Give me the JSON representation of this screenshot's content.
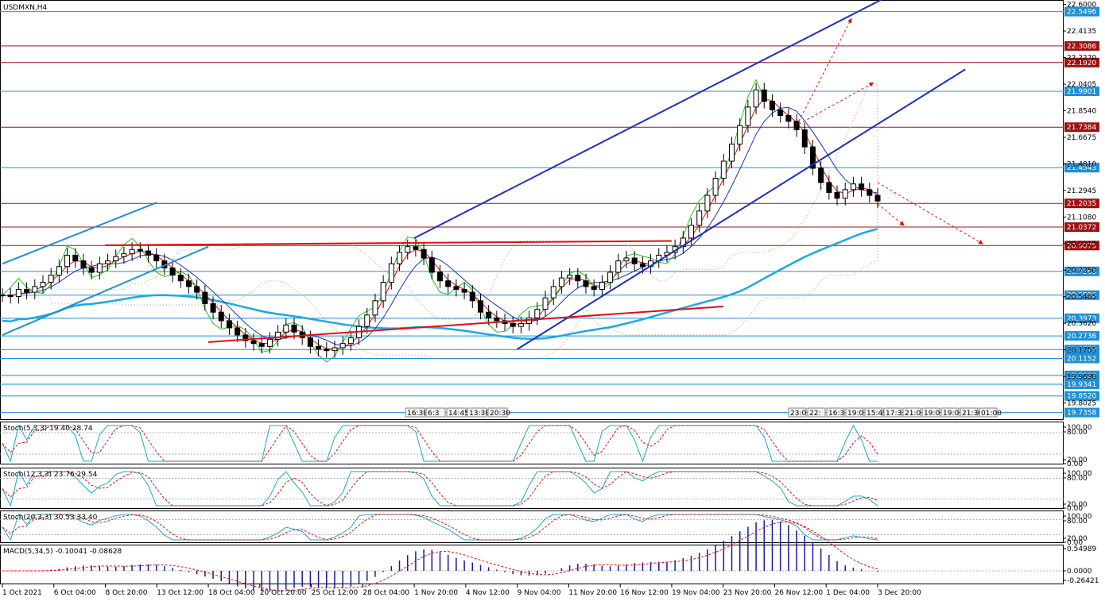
{
  "chart_data": {
    "type": "candlestick",
    "title": "USDMXN,H4",
    "symbol": "USDMXN",
    "timeframe": "H4",
    "ylim": [
      19.7,
      22.62
    ],
    "price_ticks": [
      "22.6000",
      "22.4135",
      "22.2270",
      "22.0405",
      "21.8540",
      "21.6675",
      "21.4810",
      "21.2945",
      "21.1080",
      "20.9215",
      "20.7350",
      "20.5485",
      "20.3620",
      "20.1755",
      "19.9890",
      "19.8025"
    ],
    "level_lines": [
      {
        "value": 22.5496,
        "label": "22.5496",
        "color": "#1f8fd6"
      },
      {
        "value": 22.3086,
        "label": "22.3086",
        "color": "#a01010"
      },
      {
        "value": 22.192,
        "label": "22.1920",
        "color": "#a01010"
      },
      {
        "value": 21.9901,
        "label": "21.9901",
        "color": "#1f8fd6"
      },
      {
        "value": 21.7384,
        "label": "21.7384",
        "color": "#a01010"
      },
      {
        "value": 21.4543,
        "label": "21.4543",
        "color": "#1f8fd6"
      },
      {
        "value": 21.2035,
        "label": "21.2035",
        "color": "#a01010"
      },
      {
        "value": 21.0372,
        "label": "21.0372",
        "color": "#a01010"
      },
      {
        "value": 20.9075,
        "label": "20.9075",
        "color": "#a01010"
      },
      {
        "value": 20.7263,
        "label": "20.7263",
        "color": "#1f8fd6"
      },
      {
        "value": 20.5596,
        "label": "20.5596",
        "color": "#1f8fd6"
      },
      {
        "value": 20.3973,
        "label": "20.3973",
        "color": "#1f8fd6"
      },
      {
        "value": 20.2736,
        "label": "20.2736",
        "color": "#1f8fd6"
      },
      {
        "value": 20.1779,
        "label": "20.1779",
        "color": "#1f8fd6"
      },
      {
        "value": 20.1152,
        "label": "20.1152",
        "color": "#1f8fd6"
      },
      {
        "value": 19.9963,
        "label": "19.9963",
        "color": "#1f8fd6"
      },
      {
        "value": 19.9341,
        "label": "19.9341",
        "color": "#1f8fd6"
      },
      {
        "value": 19.852,
        "label": "19.8520",
        "color": "#1f8fd6"
      },
      {
        "value": 19.7358,
        "label": "19.7358",
        "color": "#1f8fd6"
      }
    ],
    "x_labels": [
      "1 Oct 2021",
      "6 Oct 04:00",
      "8 Oct 20:00",
      "13 Oct 12:00",
      "18 Oct 04:00",
      "20 Oct 20:00",
      "25 Oct 12:00",
      "28 Oct 04:00",
      "1 Nov 20:00",
      "4 Nov 12:00",
      "9 Nov 04:00",
      "11 Nov 20:00",
      "16 Nov 12:00",
      "19 Nov 04:00",
      "23 Nov 20:00",
      "26 Nov 12:00",
      "1 Dec 04:00",
      "3 Dec 20:00"
    ],
    "closes": [
      20.56,
      20.55,
      20.6,
      20.58,
      20.62,
      20.65,
      20.7,
      20.76,
      20.84,
      20.8,
      20.75,
      20.72,
      20.78,
      20.8,
      20.83,
      20.85,
      20.88,
      20.87,
      20.84,
      20.8,
      20.75,
      20.7,
      20.66,
      20.62,
      20.58,
      20.5,
      20.44,
      20.38,
      20.33,
      20.28,
      20.24,
      20.22,
      20.2,
      20.25,
      20.3,
      20.35,
      20.3,
      20.26,
      20.2,
      20.18,
      20.17,
      20.19,
      20.22,
      20.26,
      20.34,
      20.42,
      20.52,
      20.65,
      20.78,
      20.86,
      20.9,
      20.88,
      20.82,
      20.72,
      20.66,
      20.62,
      20.6,
      20.58,
      20.52,
      20.44,
      20.4,
      20.38,
      20.36,
      20.34,
      20.36,
      20.4,
      20.46,
      20.54,
      20.62,
      20.68,
      20.7,
      20.66,
      20.62,
      20.6,
      20.65,
      20.72,
      20.8,
      20.82,
      20.78,
      20.76,
      20.8,
      20.84,
      20.86,
      20.9,
      20.96,
      21.05,
      21.15,
      21.26,
      21.38,
      21.5,
      21.62,
      21.75,
      21.88,
      22.0,
      21.92,
      21.86,
      21.82,
      21.78,
      21.72,
      21.6,
      21.45,
      21.35,
      21.28,
      21.24,
      21.3,
      21.34,
      21.3,
      21.26,
      21.22
    ],
    "trend_lines": [
      {
        "name": "upper-channel",
        "color": "#1a2fc8",
        "from": [
          "1 Nov 20:00",
          20.96
        ],
        "to": [
          "3 Dec 20:00",
          22.62
        ]
      },
      {
        "name": "lower-channel",
        "color": "#1a2fc8",
        "from": [
          "9 Nov 04:00",
          20.18
        ],
        "to": [
          "3 Dec 20:00",
          21.76
        ]
      },
      {
        "name": "early-channel-upper",
        "color": "#1f8fd6",
        "from": [
          "1 Oct 2021",
          20.78
        ],
        "to": [
          "13 Oct 12:00",
          21.21
        ]
      },
      {
        "name": "early-channel-lower",
        "color": "#1f8fd6",
        "from": [
          "1 Oct 2021",
          20.28
        ],
        "to": [
          "18 Oct 04:00",
          20.9
        ]
      },
      {
        "name": "resistance",
        "color": "#e01010",
        "from": [
          "8 Oct 20:00",
          20.91
        ],
        "to": [
          "19 Nov 04:00",
          20.94
        ]
      },
      {
        "name": "support",
        "color": "#e01010",
        "from": [
          "18 Oct 04:00",
          20.23
        ],
        "to": [
          "23 Nov 20:00",
          20.48
        ]
      }
    ],
    "indicators": [
      {
        "name": "Stoch(5,3,3)",
        "main": "19.40",
        "signal": "28.74",
        "levels": [
          "100.00",
          "80.00",
          "20.00",
          "0.00"
        ]
      },
      {
        "name": "Stoch(12,3,3)",
        "main": "23.76",
        "signal": "29.54",
        "levels": [
          "100.00",
          "80.00",
          "20.00",
          "0.00"
        ]
      },
      {
        "name": "Stoch(20,3,3)",
        "main": "30.53",
        "signal": "33.40",
        "levels": [
          "100.00",
          "80.00",
          "20.00",
          "0.00"
        ]
      },
      {
        "name": "MACD(5,34,5)",
        "main": "-0.10041",
        "signal": "-0.08628",
        "levels": [
          "0.54989",
          "0.0000",
          "-0.26421"
        ]
      }
    ],
    "session_labels_a": [
      "16:30",
      "6:3",
      "14:45",
      "13:30",
      "20:30"
    ],
    "session_labels_b": [
      "23:0",
      "22:",
      "16:3",
      "19:0",
      "15:45",
      "17:3",
      "21:0",
      "19:0",
      "19:0",
      "21:30",
      "01:00"
    ],
    "colors": {
      "bull": "#000000",
      "bear": "#000000",
      "ma_fast": "#e01010",
      "ma_slow": "#1a2fc8",
      "ma_long": "#1aa8e8",
      "lagging": "#22c41a",
      "cloud": "#e8a070"
    }
  }
}
